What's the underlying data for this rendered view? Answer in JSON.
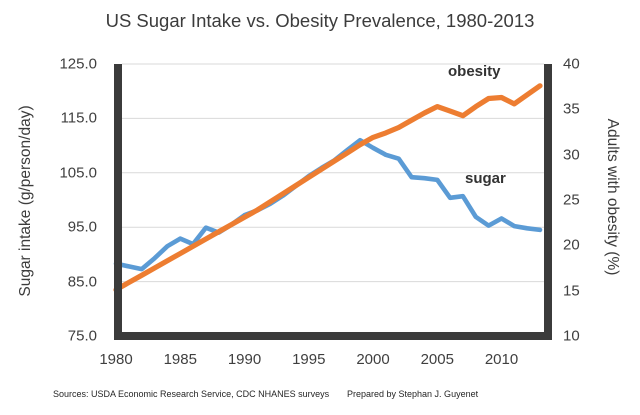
{
  "title": "US Sugar Intake vs. Obesity Prevalence, 1980-2013",
  "footer": {
    "sources": "Sources: USDA Economic Research Service, CDC NHANES surveys",
    "prepared": "Prepared by Stephan J. Guyenet"
  },
  "colors": {
    "sugar_line": "#5B9BD5",
    "obesity_line": "#ED7D31",
    "gridline": "#D9D9D9",
    "axis_frame": "#3B3B3B",
    "text": "#3F3F3F"
  },
  "chart_data": {
    "type": "line",
    "title": "US Sugar Intake vs. Obesity Prevalence, 1980-2013",
    "grid": "horizontal",
    "legend": "inline-labels",
    "x": [
      1980,
      1981,
      1982,
      1983,
      1984,
      1985,
      1986,
      1987,
      1988,
      1989,
      1990,
      1991,
      1992,
      1993,
      1994,
      1995,
      1996,
      1997,
      1998,
      1999,
      2000,
      2001,
      2002,
      2003,
      2004,
      2005,
      2006,
      2007,
      2008,
      2009,
      2010,
      2011,
      2012,
      2013
    ],
    "x_tick_labels": [
      "1980",
      "1985",
      "1990",
      "1995",
      "2000",
      "2005",
      "2010"
    ],
    "left_axis": {
      "label": "Sugar intake (g/person/day)",
      "range": [
        75,
        125
      ],
      "tick_values": [
        125,
        115,
        105,
        95,
        85,
        75
      ],
      "tick_labels": [
        "125.0",
        "115.0",
        "105.0",
        "95.0",
        "85.0",
        "75.0"
      ]
    },
    "right_axis": {
      "label": "Adults with obesity (%)",
      "range": [
        10,
        40
      ],
      "tick_values": [
        40,
        35,
        30,
        25,
        20,
        15,
        10
      ],
      "tick_labels": [
        "40",
        "35",
        "30",
        "25",
        "20",
        "15",
        "10"
      ]
    },
    "series": [
      {
        "name": "sugar",
        "label": "sugar",
        "axis": "left",
        "color": "#5B9BD5",
        "values": [
          88.3,
          87.8,
          87.3,
          89.3,
          91.5,
          92.9,
          91.9,
          94.9,
          94.0,
          95.5,
          97.2,
          98.1,
          99.3,
          100.8,
          102.6,
          104.4,
          105.9,
          107.3,
          109.2,
          111.0,
          109.6,
          108.3,
          107.6,
          104.2,
          104.0,
          103.7,
          100.4,
          100.7,
          96.9,
          95.3,
          96.6,
          95.2,
          94.8,
          94.5
        ]
      },
      {
        "name": "obesity",
        "label": "obesity",
        "axis": "right",
        "color": "#ED7D31",
        "values": [
          15.1,
          15.9,
          16.7,
          17.5,
          18.3,
          19.1,
          19.9,
          20.7,
          21.5,
          22.3,
          23.1,
          23.9,
          24.8,
          25.7,
          26.6,
          27.5,
          28.4,
          29.3,
          30.2,
          31.1,
          31.9,
          32.4,
          33.0,
          33.8,
          34.6,
          35.3,
          34.8,
          34.3,
          35.3,
          36.2,
          36.3,
          35.6,
          36.6,
          37.6
        ]
      }
    ]
  }
}
